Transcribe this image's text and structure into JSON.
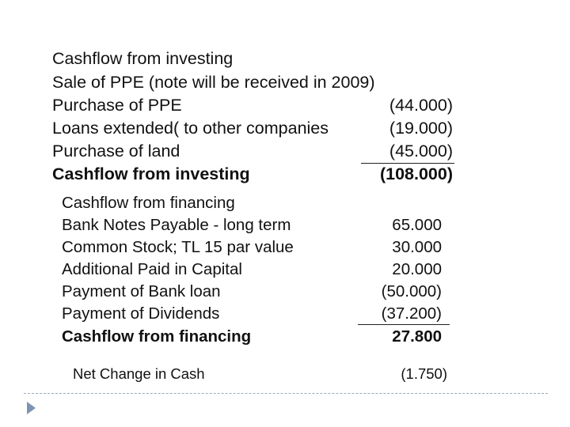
{
  "investing": {
    "rows": [
      {
        "label": "Cashflow from investing",
        "value": ""
      },
      {
        "label": "Sale of PPE (note will be received in 2009)",
        "value": ""
      },
      {
        "label": "Purchase of PPE",
        "value": "(44.000)"
      },
      {
        "label": "Loans extended( to other companies",
        "value": "(19.000)"
      },
      {
        "label": "Purchase of land",
        "value": "(45.000)"
      }
    ],
    "total": {
      "label": "Cashflow from investing",
      "value": "(108.000)"
    }
  },
  "financing": {
    "rows": [
      {
        "label": "Cashflow from financing",
        "value": ""
      },
      {
        "label": "Bank Notes Payable - long term",
        "value": "65.000"
      },
      {
        "label": "Common Stock; TL 15 par value",
        "value": "30.000"
      },
      {
        "label": "Additional Paid in Capital",
        "value": "20.000"
      },
      {
        "label": "Payment of Bank loan",
        "value": "(50.000)"
      },
      {
        "label": "Payment of Dividends",
        "value": "(37.200)"
      }
    ],
    "total": {
      "label": "Cashflow from financing",
      "value": "27.800"
    }
  },
  "net_change": {
    "label": "Net Change in Cash",
    "value": "(1.750)"
  },
  "colors": {
    "text": "#111111",
    "background": "#ffffff",
    "divider": "#9aa8bf",
    "bullet": "#7f94b5"
  },
  "icons": {
    "slide_bullet": "arrow-icon"
  }
}
